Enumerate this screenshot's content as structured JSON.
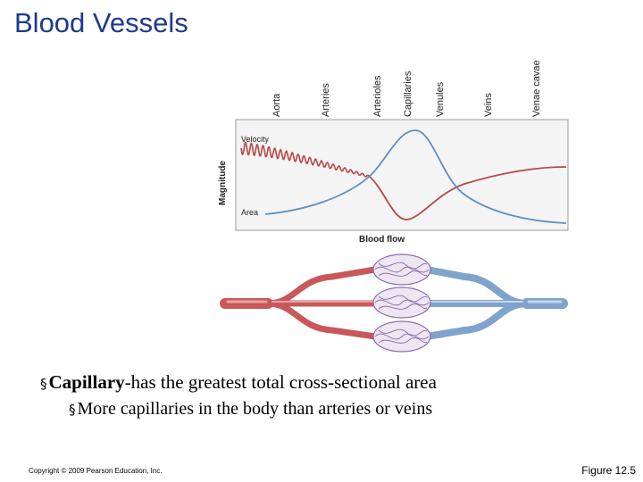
{
  "slide": {
    "title": "Blood Vessels",
    "copyright": "Copyright © 2009 Pearson Education, Inc.",
    "figure_ref": "Figure 12.5"
  },
  "diagram": {
    "vessel_labels": [
      "Aorta",
      "Arteries",
      "Arterioles",
      "Capillaries",
      "Venules",
      "Veins",
      "Venae cavae"
    ],
    "y_axis_label": "Magnitude",
    "curve_labels": {
      "velocity": "Velocity",
      "area": "Area"
    },
    "x_axis_label": "Blood flow",
    "colors": {
      "velocity": "#b8474a",
      "area": "#5b8fc2",
      "artery": "#c8585a",
      "vein": "#7fa3cc",
      "capillary": "#8a6aa8"
    }
  },
  "bullets": {
    "level1_bold": "Capillary",
    "level1_rest": "-has the greatest total cross-sectional area",
    "level2": "More capillaries in the body than arteries or veins",
    "marker": "§"
  }
}
